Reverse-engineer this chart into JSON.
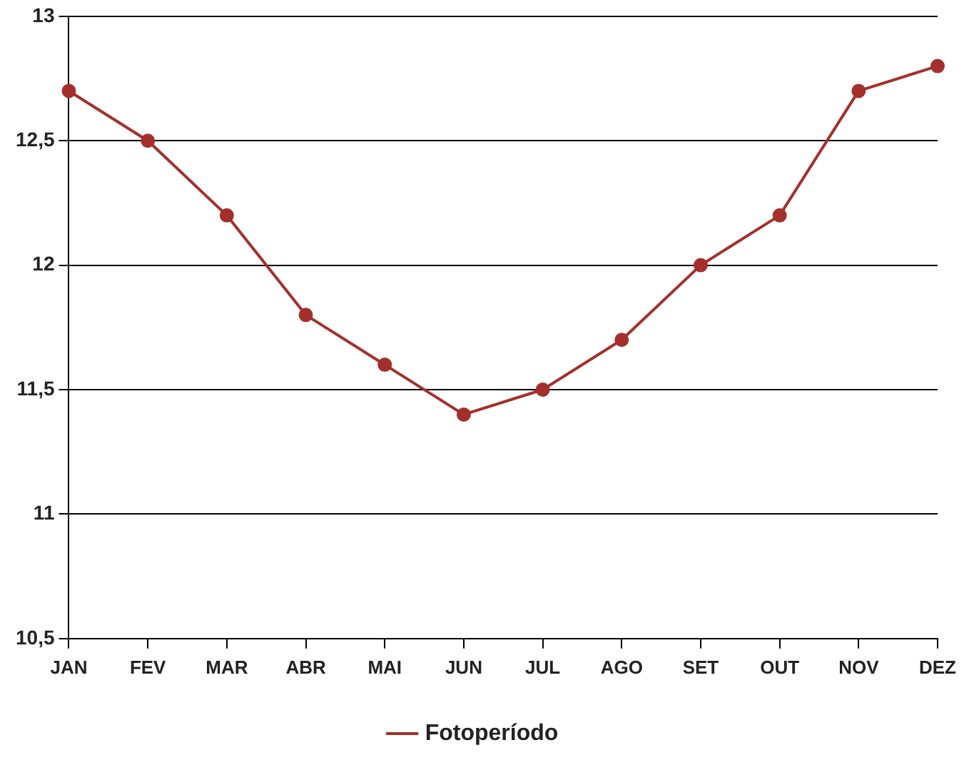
{
  "chart_data": {
    "type": "line",
    "categories": [
      "JAN",
      "FEV",
      "MAR",
      "ABR",
      "MAI",
      "JUN",
      "JUL",
      "AGO",
      "SET",
      "OUT",
      "NOV",
      "DEZ"
    ],
    "series": [
      {
        "name": "Fotoperíodo",
        "color": "#a3302c",
        "values": [
          12.7,
          12.5,
          12.2,
          11.8,
          11.6,
          11.4,
          11.5,
          11.7,
          12.0,
          12.2,
          12.7,
          12.8
        ]
      }
    ],
    "ylim": [
      10.5,
      13
    ],
    "yticks": [
      {
        "value": 10.5,
        "label": "10,5"
      },
      {
        "value": 11,
        "label": "11"
      },
      {
        "value": 11.5,
        "label": "11,5"
      },
      {
        "value": 12,
        "label": "12"
      },
      {
        "value": 12.5,
        "label": "12,5"
      },
      {
        "value": 13,
        "label": "13"
      }
    ],
    "grid": "y",
    "legend": "bottom",
    "marker": "circle",
    "line_style": "solid"
  }
}
